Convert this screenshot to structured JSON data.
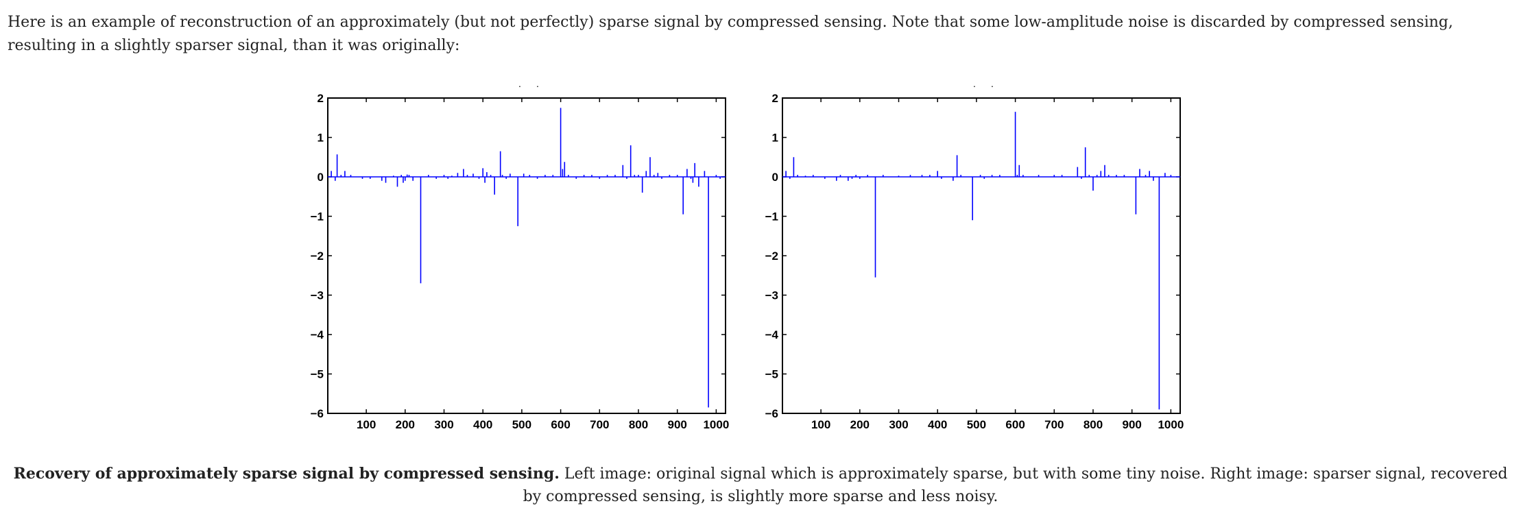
{
  "intro_text": "Here is an example of reconstruction of an approximately (but not perfectly) sparse signal by compressed sensing. Note that some low-amplitude noise is discarded by compressed sensing, resulting in a slightly sparser signal, than it was originally:",
  "caption": {
    "bold": "Recovery of approximately sparse signal by compressed sensing.",
    "text": " Left image: original signal which is approximately sparse, but with some tiny noise. Right image: sparser signal, recovered by compressed sensing, is slightly more sparse and less noisy."
  },
  "chart_data": [
    {
      "type": "line",
      "title": "",
      "xlabel": "",
      "ylabel": "",
      "xlim": [
        1,
        1024
      ],
      "ylim": [
        -6,
        2
      ],
      "xticks": [
        100,
        200,
        300,
        400,
        500,
        600,
        700,
        800,
        900,
        1000
      ],
      "yticks": [
        2,
        1,
        0,
        -1,
        -2,
        -3,
        -4,
        -5,
        -6
      ],
      "grid": false,
      "color": "#0000ff",
      "series": [
        {
          "x": [
            10,
            20,
            25,
            35,
            45,
            60,
            90,
            110,
            140,
            150,
            170,
            180,
            190,
            195,
            200,
            205,
            210,
            220,
            240,
            260,
            280,
            300,
            310,
            320,
            335,
            350,
            360,
            375,
            390,
            400,
            405,
            410,
            420,
            430,
            445,
            450,
            460,
            470,
            490,
            505,
            520,
            540,
            560,
            580,
            600,
            605,
            610,
            620,
            640,
            660,
            680,
            700,
            720,
            740,
            760,
            770,
            780,
            790,
            800,
            810,
            820,
            830,
            840,
            850,
            860,
            880,
            900,
            915,
            925,
            935,
            940,
            945,
            955,
            970,
            980,
            1000,
            1010
          ],
          "y": [
            0.15,
            -0.1,
            0.57,
            0.05,
            0.15,
            0.05,
            -0.05,
            -0.05,
            -0.1,
            -0.15,
            0.03,
            -0.25,
            0.05,
            -0.15,
            -0.1,
            0.06,
            0.05,
            -0.1,
            -2.7,
            0.05,
            -0.05,
            0.05,
            -0.05,
            0.03,
            0.1,
            0.2,
            0.05,
            0.08,
            -0.05,
            0.22,
            -0.15,
            0.12,
            0.05,
            -0.45,
            0.65,
            0.05,
            -0.05,
            0.08,
            -1.25,
            0.08,
            0.05,
            -0.05,
            0.05,
            0.05,
            1.75,
            0.2,
            0.38,
            0.05,
            -0.05,
            0.05,
            0.05,
            -0.05,
            0.05,
            0.05,
            0.3,
            -0.05,
            0.8,
            0.05,
            0.05,
            -0.4,
            0.15,
            0.5,
            0.05,
            0.1,
            -0.05,
            0.05,
            0.05,
            -0.95,
            0.2,
            -0.05,
            -0.15,
            0.35,
            -0.25,
            0.15,
            -5.85,
            0.05,
            -0.05
          ]
        }
      ]
    },
    {
      "type": "line",
      "title": "",
      "xlabel": "",
      "ylabel": "",
      "xlim": [
        1,
        1024
      ],
      "ylim": [
        -6,
        2
      ],
      "xticks": [
        100,
        200,
        300,
        400,
        500,
        600,
        700,
        800,
        900,
        1000
      ],
      "yticks": [
        2,
        1,
        0,
        -1,
        -2,
        -3,
        -4,
        -5,
        -6
      ],
      "grid": false,
      "color": "#0000ff",
      "series": [
        {
          "x": [
            10,
            20,
            30,
            40,
            60,
            80,
            110,
            140,
            150,
            170,
            180,
            190,
            200,
            220,
            240,
            260,
            300,
            330,
            360,
            380,
            400,
            410,
            440,
            450,
            460,
            490,
            510,
            520,
            540,
            560,
            600,
            605,
            610,
            620,
            660,
            700,
            720,
            760,
            770,
            780,
            790,
            800,
            810,
            820,
            830,
            840,
            860,
            880,
            910,
            920,
            935,
            945,
            955,
            970,
            985,
            1000
          ],
          "y": [
            0.15,
            -0.05,
            0.5,
            0.05,
            0.03,
            0.05,
            -0.05,
            -0.1,
            0.05,
            -0.1,
            -0.05,
            0.05,
            -0.05,
            0.05,
            -2.55,
            0.05,
            0.03,
            0.05,
            0.05,
            0.05,
            0.15,
            -0.05,
            -0.1,
            0.55,
            0.05,
            -1.1,
            0.05,
            -0.05,
            0.05,
            0.05,
            1.65,
            0.05,
            0.3,
            0.05,
            0.05,
            0.05,
            0.05,
            0.25,
            -0.05,
            0.75,
            0.05,
            -0.35,
            0.05,
            0.15,
            0.3,
            0.05,
            0.05,
            0.05,
            -0.95,
            0.2,
            0.05,
            0.15,
            -0.1,
            -5.9,
            0.1,
            0.05
          ]
        }
      ]
    }
  ]
}
